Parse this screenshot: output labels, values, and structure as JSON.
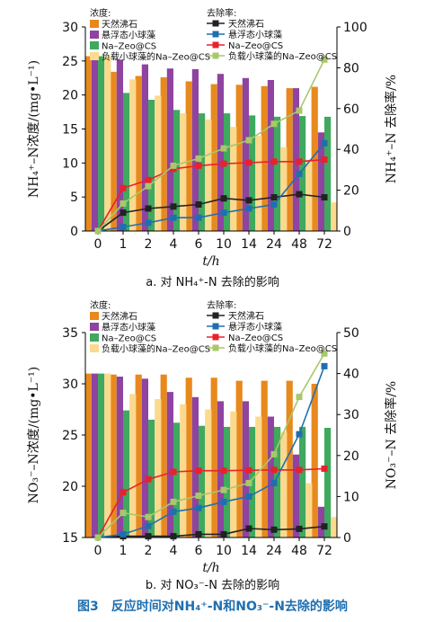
{
  "figure_caption": "图3　反应时间对NH₄⁺-N和NO₃⁻-N去除的影响",
  "chart_data": [
    {
      "type": "bar+line",
      "subcaption": "a. 对 NH₄⁺-N 去除的影响",
      "xlabel": "t/h",
      "ylabel_left": "NH₄⁺–N浓度/(mg•L⁻¹)",
      "ylabel_right": "NH₄⁺–N 去除率/%",
      "legend_title_left": "浓度:",
      "legend_title_right": "去除率:",
      "categories": [
        "0",
        "1",
        "2",
        "4",
        "6",
        "10",
        "14",
        "24",
        "48",
        "72"
      ],
      "ylim_left": [
        0,
        30
      ],
      "yticks_left": [
        0,
        5,
        10,
        15,
        20,
        25,
        30
      ],
      "ylim_right": [
        0,
        100
      ],
      "yticks_right": [
        0,
        20,
        40,
        60,
        80,
        100
      ],
      "bar_series": [
        {
          "name": "天然沸石",
          "color": "#e8891d",
          "values": [
            25.7,
            23.4,
            22.8,
            22.6,
            22.0,
            21.6,
            21.5,
            21.3,
            21.0,
            21.2
          ]
        },
        {
          "name": "悬浮态小球藻",
          "color": "#8e44a0",
          "values": [
            25.7,
            25.2,
            24.5,
            23.9,
            23.8,
            23.1,
            22.5,
            22.2,
            21.0,
            14.5
          ]
        },
        {
          "name": "Na–Zeo@CS",
          "color": "#3fa95e",
          "values": [
            25.7,
            20.3,
            19.3,
            17.8,
            17.3,
            17.3,
            17.0,
            16.8,
            16.9,
            16.8
          ]
        },
        {
          "name": "负载小球藻的Na–Zeo@CS",
          "color": "#fbd98e",
          "values": [
            25.7,
            22.3,
            19.9,
            17.3,
            16.4,
            15.3,
            14.0,
            12.3,
            10.5,
            4.2
          ]
        }
      ],
      "line_series": [
        {
          "name": "天然沸石",
          "color": "#222222",
          "marker": "square",
          "values": [
            0,
            9.0,
            11.0,
            12.0,
            13.0,
            16.0,
            15.0,
            16.5,
            18.0,
            16.5
          ]
        },
        {
          "name": "悬浮态小球藻",
          "color": "#1f6fb0",
          "marker": "square",
          "values": [
            0,
            2.0,
            4.0,
            6.5,
            6.5,
            9.0,
            11.0,
            13.0,
            28.0,
            43.0
          ]
        },
        {
          "name": "Na–Zeo@CS",
          "color": "#e8212d",
          "marker": "square",
          "values": [
            0,
            21.0,
            25.0,
            30.5,
            32.0,
            33.0,
            33.5,
            34.0,
            34.0,
            35.0
          ]
        },
        {
          "name": "负载小球藻的Na–Zeo@CS",
          "color": "#a8c86a",
          "marker": "square",
          "values": [
            0,
            13.5,
            22.0,
            32.0,
            35.5,
            40.5,
            44.5,
            52.5,
            59.0,
            84.0
          ]
        }
      ]
    },
    {
      "type": "bar+line",
      "subcaption": "b. 对 NO₃⁻-N 去除的影响",
      "xlabel": "t/h",
      "ylabel_left": "NO₃⁻–N浓度/(mg•L⁻¹)",
      "ylabel_right": "NO₃⁻–N 去除率/%",
      "legend_title_left": "浓度:",
      "legend_title_right": "去除率:",
      "categories": [
        "0",
        "1",
        "2",
        "4",
        "6",
        "10",
        "14",
        "24",
        "48",
        "72"
      ],
      "ylim_left": [
        15,
        35
      ],
      "yticks_left": [
        15,
        20,
        25,
        30,
        35
      ],
      "ylim_right": [
        0,
        50
      ],
      "yticks_right": [
        0,
        10,
        20,
        30,
        40,
        50
      ],
      "bar_series": [
        {
          "name": "天然沸石",
          "color": "#e8891d",
          "values": [
            31.0,
            30.9,
            30.9,
            30.9,
            30.6,
            30.6,
            30.3,
            30.3,
            30.3,
            30.0
          ]
        },
        {
          "name": "悬浮态小球藻",
          "color": "#8e44a0",
          "values": [
            31.0,
            30.7,
            30.5,
            29.2,
            28.7,
            28.3,
            28.3,
            26.8,
            23.1,
            18.0
          ]
        },
        {
          "name": "Na–Zeo@CS",
          "color": "#3fa95e",
          "values": [
            31.0,
            27.4,
            26.5,
            26.2,
            25.9,
            25.8,
            25.8,
            25.8,
            25.8,
            25.7
          ]
        },
        {
          "name": "负载小球藻的Na–Zeo@CS",
          "color": "#fbd98e",
          "values": [
            31.0,
            29.0,
            28.5,
            28.0,
            27.5,
            27.3,
            26.8,
            25.3,
            20.3,
            17.0
          ]
        }
      ],
      "line_series": [
        {
          "name": "天然沸石",
          "color": "#222222",
          "marker": "square",
          "values": [
            0,
            0.3,
            0.3,
            0.3,
            0.8,
            0.8,
            2.2,
            1.9,
            2.1,
            2.7
          ]
        },
        {
          "name": "悬浮态小球藻",
          "color": "#1f6fb0",
          "marker": "square",
          "values": [
            0,
            0.8,
            2.8,
            6.3,
            7.2,
            8.7,
            10.0,
            13.3,
            25.2,
            41.8
          ]
        },
        {
          "name": "Na–Zeo@CS",
          "color": "#e8212d",
          "marker": "square",
          "values": [
            0,
            11.0,
            14.2,
            16.0,
            16.3,
            16.3,
            16.4,
            16.5,
            16.5,
            16.8
          ]
        },
        {
          "name": "负载小球藻的Na–Zeo@CS",
          "color": "#a8c86a",
          "marker": "square",
          "values": [
            0,
            6.0,
            5.0,
            8.7,
            10.2,
            11.6,
            13.3,
            20.3,
            34.3,
            44.9
          ]
        }
      ]
    }
  ]
}
